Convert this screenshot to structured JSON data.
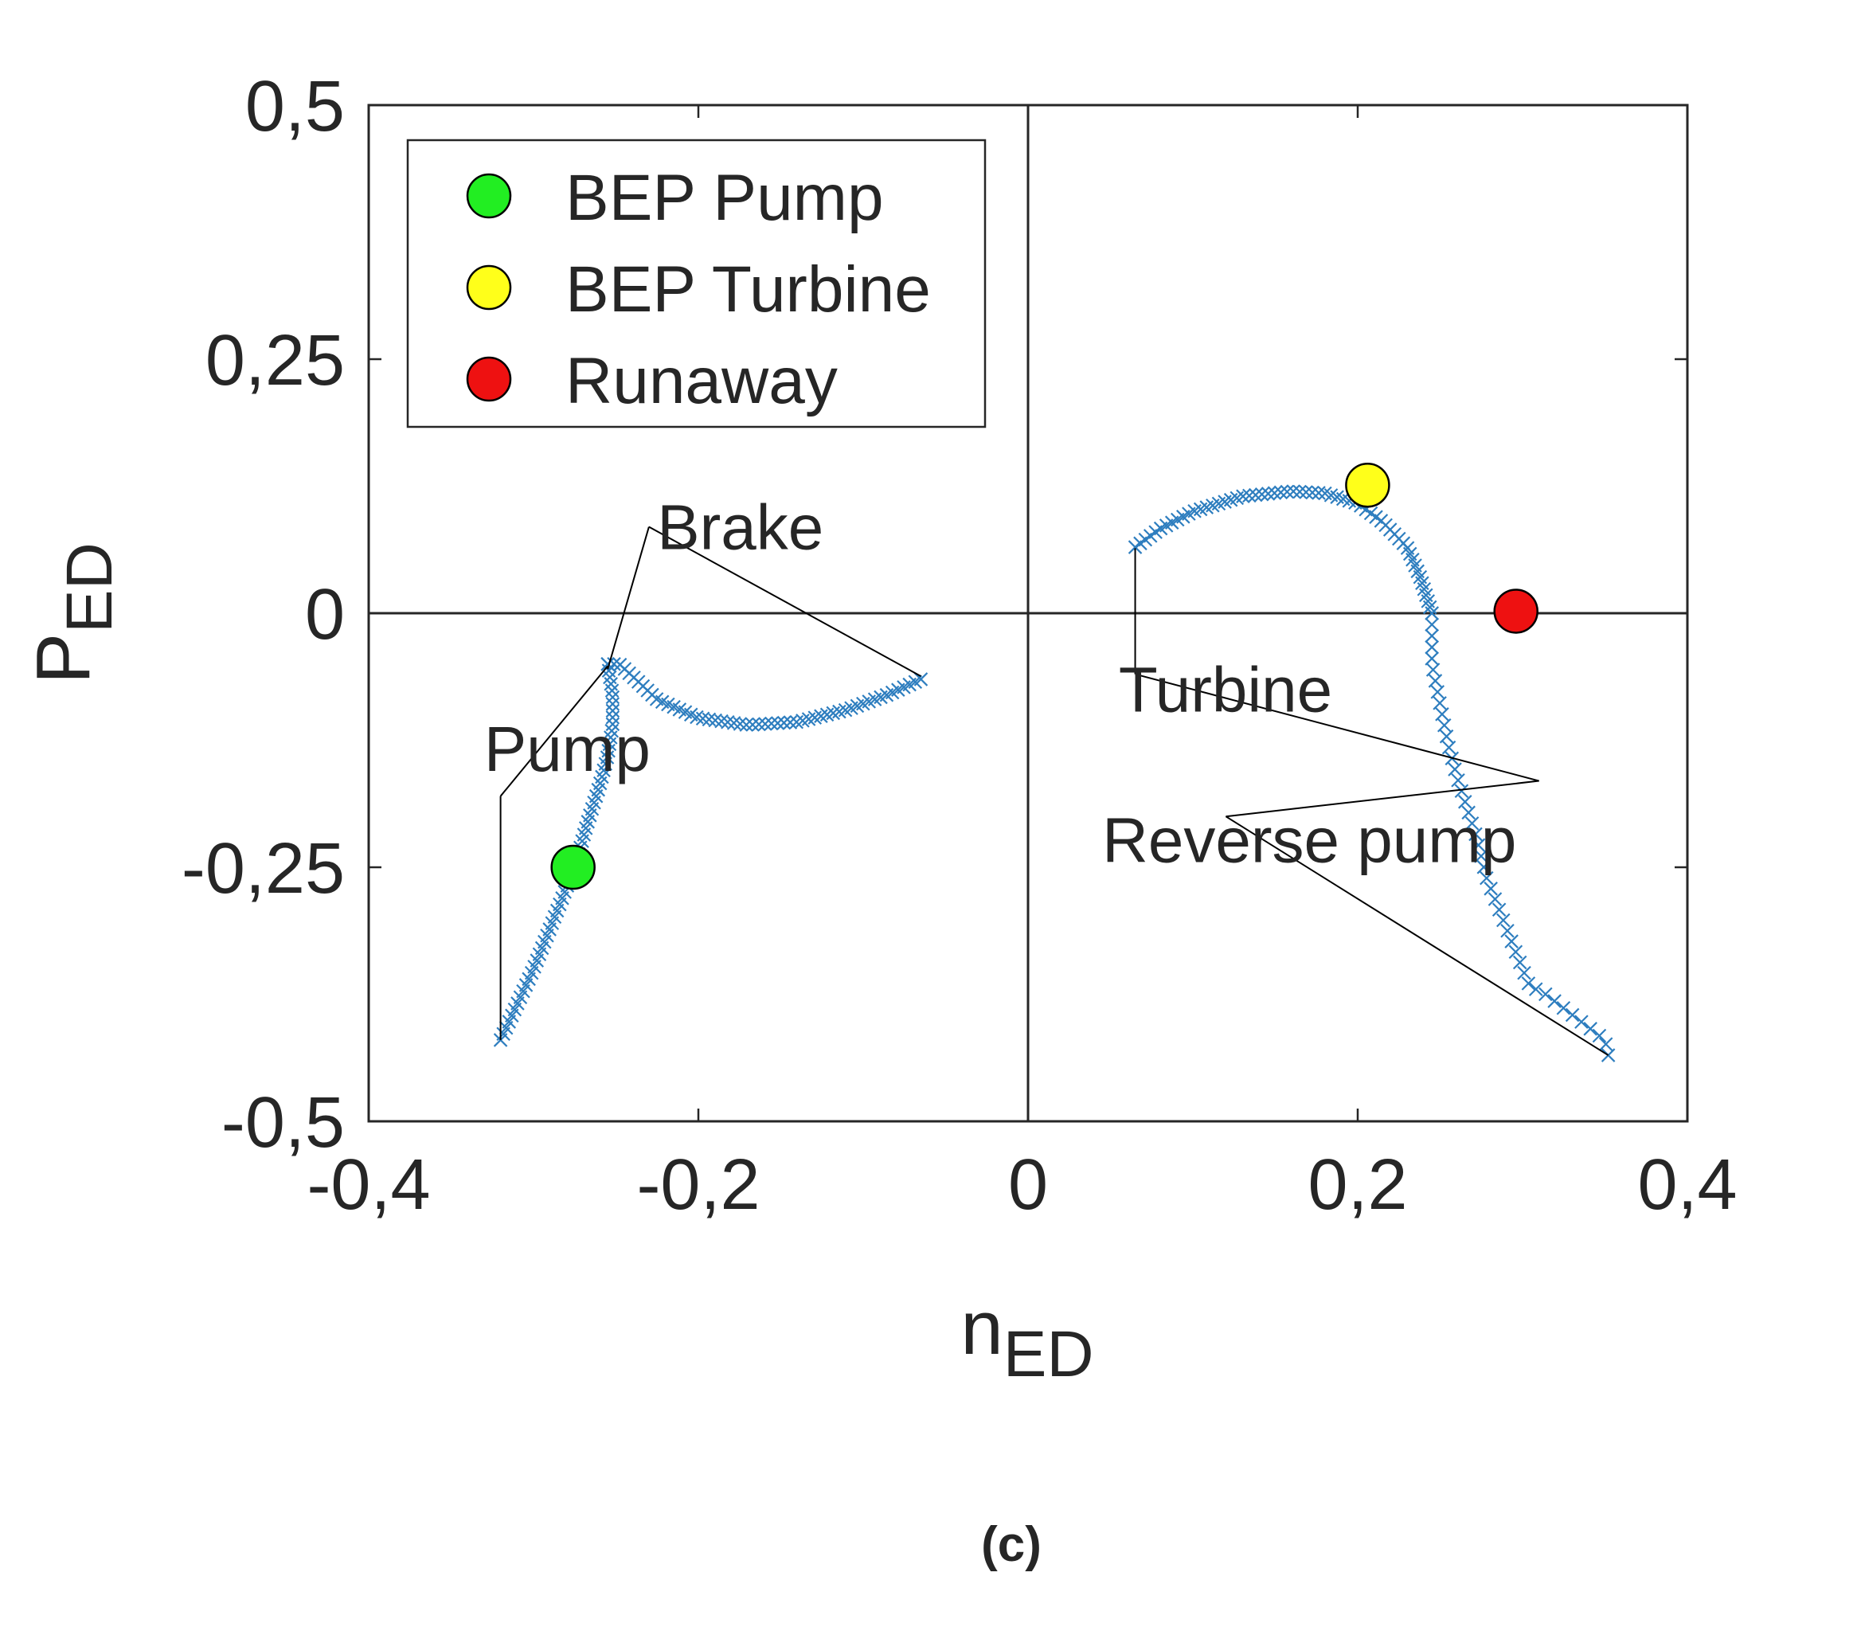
{
  "chart_data": {
    "type": "scatter",
    "xlim": [
      -0.4,
      0.4
    ],
    "ylim": [
      -0.5,
      0.5
    ],
    "grid": false,
    "x_ticks": [
      -0.4,
      -0.2,
      0,
      0.2,
      0.4
    ],
    "x_tick_labels": [
      "-0,4",
      "-0,2",
      "0",
      "0,2",
      "0,4"
    ],
    "y_ticks": [
      -0.5,
      -0.25,
      0,
      0.25,
      0.5
    ],
    "y_tick_labels": [
      "-0,5",
      "-0,25",
      "0",
      "0,25",
      "0,5"
    ],
    "xlabel": {
      "main": "n",
      "sub": "ED"
    },
    "ylabel": {
      "main": "P",
      "sub": "ED"
    },
    "series": [
      {
        "marker": "x",
        "color": "#2e7ebf",
        "segments": [
          {
            "x": [
              -0.32,
              -0.3,
              -0.285,
              -0.275,
              -0.268,
              -0.26,
              -0.255,
              -0.252,
              -0.252,
              -0.254,
              -0.255
            ],
            "y": [
              -0.42,
              -0.35,
              -0.29,
              -0.25,
              -0.21,
              -0.17,
              -0.14,
              -0.11,
              -0.08,
              -0.06,
              -0.05
            ],
            "count": 60
          },
          {
            "x": [
              -0.255,
              -0.248,
              -0.238,
              -0.225,
              -0.2,
              -0.17,
              -0.14,
              -0.11,
              -0.085,
              -0.065
            ],
            "y": [
              -0.05,
              -0.05,
              -0.065,
              -0.085,
              -0.103,
              -0.11,
              -0.107,
              -0.095,
              -0.08,
              -0.065
            ],
            "count": 55
          },
          {
            "x": [
              0.065,
              0.08,
              0.1,
              0.13,
              0.16,
              0.18,
              0.2,
              0.215,
              0.23,
              0.238,
              0.245
            ],
            "y": [
              0.065,
              0.083,
              0.1,
              0.115,
              0.12,
              0.118,
              0.108,
              0.09,
              0.065,
              0.035,
              0.0
            ],
            "count": 60
          },
          {
            "x": [
              0.245,
              0.245,
              0.25,
              0.255,
              0.26,
              0.268,
              0.272,
              0.278,
              0.283,
              0.295,
              0.305,
              0.31,
              0.35,
              0.352
            ],
            "y": [
              0.0,
              -0.05,
              -0.09,
              -0.13,
              -0.16,
              -0.2,
              -0.22,
              -0.26,
              -0.28,
              -0.33,
              -0.37,
              -0.37,
              -0.42,
              -0.435
            ],
            "count": 45
          }
        ]
      }
    ],
    "points": [
      {
        "name": "BEP Pump",
        "x": -0.276,
        "y": -0.25,
        "color": "#22ee22"
      },
      {
        "name": "BEP Turbine",
        "x": 0.206,
        "y": 0.126,
        "color": "#ffff1a"
      },
      {
        "name": "Runaway",
        "x": 0.296,
        "y": 0.002,
        "color": "#ee1111"
      }
    ],
    "legend": {
      "position": "top-left",
      "entries": [
        "BEP Pump",
        "BEP Turbine",
        "Runaway"
      ]
    },
    "annotations": [
      {
        "text": "Brake",
        "anchor_x": -0.23,
        "anchor_y": 0.085,
        "targets": [
          [
            -0.255,
            -0.055
          ],
          [
            -0.065,
            -0.062
          ]
        ]
      },
      {
        "text": "Pump",
        "anchor_x": -0.32,
        "anchor_y": -0.18,
        "targets": [
          [
            -0.255,
            -0.052
          ],
          [
            -0.32,
            -0.42
          ]
        ]
      },
      {
        "text": "Turbine",
        "anchor_x": 0.065,
        "anchor_y": -0.06,
        "targets": [
          [
            0.065,
            0.064
          ],
          [
            0.31,
            -0.165
          ]
        ]
      },
      {
        "text": "Reverse pump",
        "anchor_x": 0.12,
        "anchor_y": -0.2,
        "targets": [
          [
            0.31,
            -0.165
          ],
          [
            0.352,
            -0.435
          ]
        ]
      }
    ]
  },
  "caption": "(c)"
}
